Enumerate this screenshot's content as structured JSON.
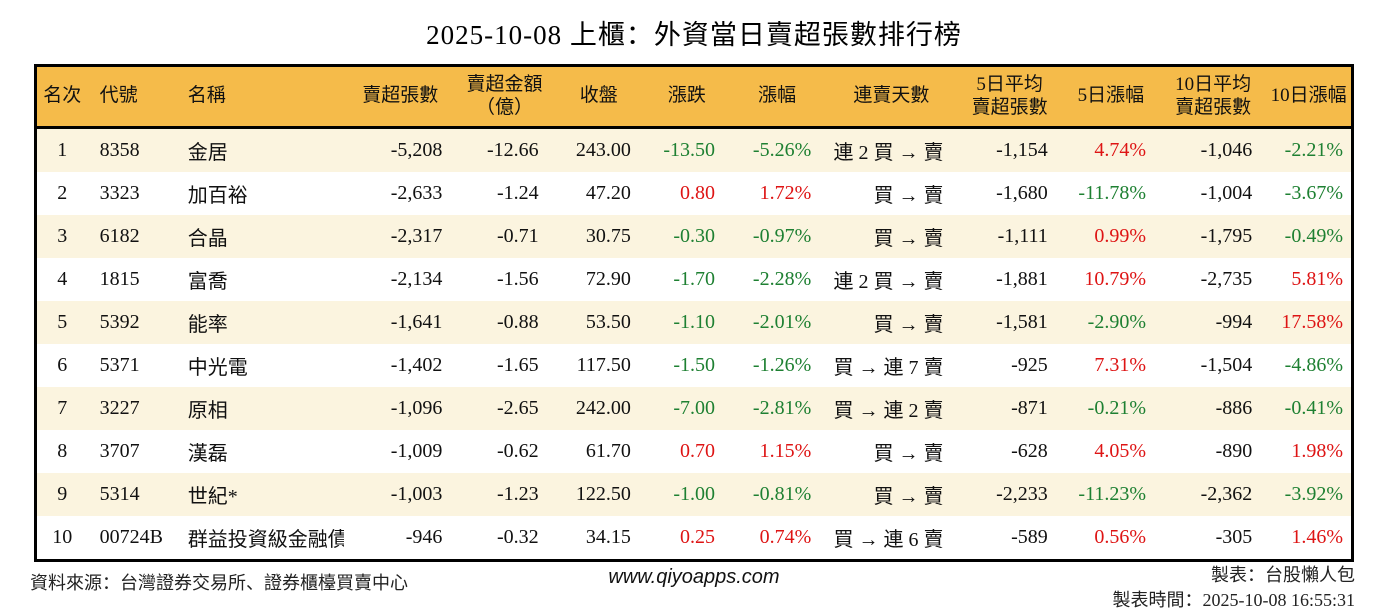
{
  "title": "2025-10-08 上櫃：外資當日賣超張數排行榜",
  "colors": {
    "header_bg": "#F5BB4A",
    "row_alt_bg": "#FBF4DF",
    "up_red": "#DE1414",
    "down_green": "#1E8032",
    "border": "#000000"
  },
  "chart_data": {
    "type": "table",
    "title": "2025-10-08 上櫃：外資當日賣超張數排行榜",
    "columns": [
      {
        "key": "rank",
        "label": "名次"
      },
      {
        "key": "code",
        "label": "代號"
      },
      {
        "key": "name",
        "label": "名稱"
      },
      {
        "key": "sell_volume",
        "label": "賣超張數"
      },
      {
        "key": "sell_amount",
        "label": "賣超金額",
        "label2": "（億）"
      },
      {
        "key": "close",
        "label": "收盤"
      },
      {
        "key": "change",
        "label": "漲跌"
      },
      {
        "key": "change_pct",
        "label": "漲幅"
      },
      {
        "key": "streak",
        "label": "連賣天數"
      },
      {
        "key": "avg5",
        "label": "5日平均",
        "label2": "賣超張數"
      },
      {
        "key": "pct5",
        "label": "5日漲幅"
      },
      {
        "key": "avg10",
        "label": "10日平均",
        "label2": "賣超張數"
      },
      {
        "key": "pct10",
        "label": "10日漲幅"
      }
    ],
    "rows": [
      {
        "rank": "1",
        "code": "8358",
        "name": "金居",
        "sell_volume": "-5,208",
        "sell_amount": "-12.66",
        "close": "243.00",
        "change": "-13.50",
        "change_pct": "-5.26%",
        "change_dir": "down",
        "streak": "連 2 買 → 賣",
        "avg5": "-1,154",
        "pct5": "4.74%",
        "pct5_dir": "up",
        "avg10": "-1,046",
        "pct10": "-2.21%",
        "pct10_dir": "down"
      },
      {
        "rank": "2",
        "code": "3323",
        "name": "加百裕",
        "sell_volume": "-2,633",
        "sell_amount": "-1.24",
        "close": "47.20",
        "change": "0.80",
        "change_pct": "1.72%",
        "change_dir": "up",
        "streak": "買 → 賣",
        "avg5": "-1,680",
        "pct5": "-11.78%",
        "pct5_dir": "down",
        "avg10": "-1,004",
        "pct10": "-3.67%",
        "pct10_dir": "down"
      },
      {
        "rank": "3",
        "code": "6182",
        "name": "合晶",
        "sell_volume": "-2,317",
        "sell_amount": "-0.71",
        "close": "30.75",
        "change": "-0.30",
        "change_pct": "-0.97%",
        "change_dir": "down",
        "streak": "買 → 賣",
        "avg5": "-1,111",
        "pct5": "0.99%",
        "pct5_dir": "up",
        "avg10": "-1,795",
        "pct10": "-0.49%",
        "pct10_dir": "down"
      },
      {
        "rank": "4",
        "code": "1815",
        "name": "富喬",
        "sell_volume": "-2,134",
        "sell_amount": "-1.56",
        "close": "72.90",
        "change": "-1.70",
        "change_pct": "-2.28%",
        "change_dir": "down",
        "streak": "連 2 買 → 賣",
        "avg5": "-1,881",
        "pct5": "10.79%",
        "pct5_dir": "up",
        "avg10": "-2,735",
        "pct10": "5.81%",
        "pct10_dir": "up"
      },
      {
        "rank": "5",
        "code": "5392",
        "name": "能率",
        "sell_volume": "-1,641",
        "sell_amount": "-0.88",
        "close": "53.50",
        "change": "-1.10",
        "change_pct": "-2.01%",
        "change_dir": "down",
        "streak": "買 → 賣",
        "avg5": "-1,581",
        "pct5": "-2.90%",
        "pct5_dir": "down",
        "avg10": "-994",
        "pct10": "17.58%",
        "pct10_dir": "up"
      },
      {
        "rank": "6",
        "code": "5371",
        "name": "中光電",
        "sell_volume": "-1,402",
        "sell_amount": "-1.65",
        "close": "117.50",
        "change": "-1.50",
        "change_pct": "-1.26%",
        "change_dir": "down",
        "streak": "買 → 連 7 賣",
        "avg5": "-925",
        "pct5": "7.31%",
        "pct5_dir": "up",
        "avg10": "-1,504",
        "pct10": "-4.86%",
        "pct10_dir": "down"
      },
      {
        "rank": "7",
        "code": "3227",
        "name": "原相",
        "sell_volume": "-1,096",
        "sell_amount": "-2.65",
        "close": "242.00",
        "change": "-7.00",
        "change_pct": "-2.81%",
        "change_dir": "down",
        "streak": "買 → 連 2 賣",
        "avg5": "-871",
        "pct5": "-0.21%",
        "pct5_dir": "down",
        "avg10": "-886",
        "pct10": "-0.41%",
        "pct10_dir": "down"
      },
      {
        "rank": "8",
        "code": "3707",
        "name": "漢磊",
        "sell_volume": "-1,009",
        "sell_amount": "-0.62",
        "close": "61.70",
        "change": "0.70",
        "change_pct": "1.15%",
        "change_dir": "up",
        "streak": "買 → 賣",
        "avg5": "-628",
        "pct5": "4.05%",
        "pct5_dir": "up",
        "avg10": "-890",
        "pct10": "1.98%",
        "pct10_dir": "up"
      },
      {
        "rank": "9",
        "code": "5314",
        "name": "世紀*",
        "sell_volume": "-1,003",
        "sell_amount": "-1.23",
        "close": "122.50",
        "change": "-1.00",
        "change_pct": "-0.81%",
        "change_dir": "down",
        "streak": "買 → 賣",
        "avg5": "-2,233",
        "pct5": "-11.23%",
        "pct5_dir": "down",
        "avg10": "-2,362",
        "pct10": "-3.92%",
        "pct10_dir": "down"
      },
      {
        "rank": "10",
        "code": "00724B",
        "name": "群益投資級金融債",
        "sell_volume": "-946",
        "sell_amount": "-0.32",
        "close": "34.15",
        "change": "0.25",
        "change_pct": "0.74%",
        "change_dir": "up",
        "streak": "買 → 連 6 賣",
        "avg5": "-589",
        "pct5": "0.56%",
        "pct5_dir": "up",
        "avg10": "-305",
        "pct10": "1.46%",
        "pct10_dir": "up"
      }
    ]
  },
  "footer": {
    "source": "資料來源：台灣證券交易所、證券櫃檯買賣中心",
    "site": "www.qiyoapps.com",
    "maker": "製表：台股懶人包",
    "timestamp": "製表時間：2025-10-08 16:55:31"
  }
}
